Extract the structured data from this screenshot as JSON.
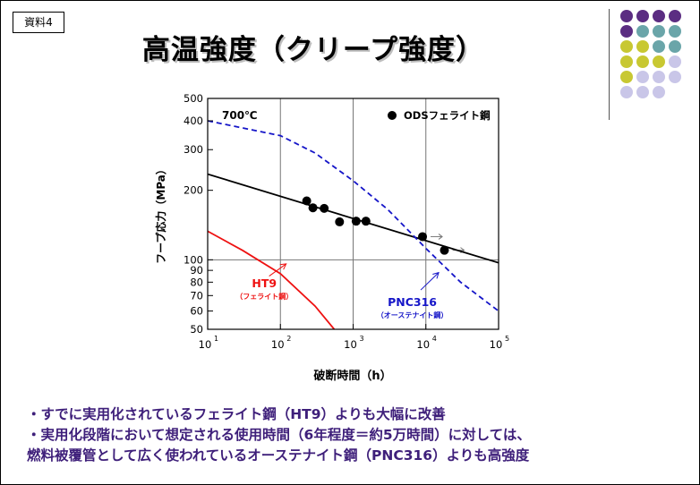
{
  "document": {
    "tag": "資料4",
    "title": "高温強度（クリープ強度）",
    "bullets": [
      "・すでに実用化されているフェライト鋼（HT9）よりも大幅に改善",
      "・実用化段階において想定される使用時間（6年程度＝約5万時間）に対しては、",
      "燃料被覆管として広く使われているオーステナイト鋼（PNC316）よりも高強度"
    ]
  },
  "decor": {
    "dot_colors": {
      "purple": "#5b2d82",
      "teal": "#6aa5a9",
      "yellow": "#c8c832",
      "lavender": "#c9c6e8"
    },
    "dot_grid": [
      [
        "purple",
        "purple",
        "purple",
        "purple"
      ],
      [
        "purple",
        "teal",
        "teal",
        "teal"
      ],
      [
        "yellow",
        "yellow",
        "teal",
        "teal"
      ],
      [
        "yellow",
        "yellow",
        "yellow",
        "lavender"
      ],
      [
        "yellow",
        "lavender",
        "lavender",
        "lavender"
      ],
      [
        "lavender",
        "lavender",
        "lavender",
        ""
      ]
    ]
  },
  "chart_data": {
    "type": "scatter",
    "xlabel": "破断時間（h）",
    "ylabel": "フープ応力（MPa）",
    "xscale": "log",
    "yscale": "log",
    "xlim": [
      10,
      100000
    ],
    "ylim": [
      50,
      500
    ],
    "xticks": [
      {
        "value": 10,
        "base": "10",
        "exp": "1"
      },
      {
        "value": 100,
        "base": "10",
        "exp": "2"
      },
      {
        "value": 1000,
        "base": "10",
        "exp": "3"
      },
      {
        "value": 10000,
        "base": "10",
        "exp": "4"
      },
      {
        "value": 100000,
        "base": "10",
        "exp": "5"
      }
    ],
    "yticks": [
      {
        "value": 50,
        "label": "50"
      },
      {
        "value": 60,
        "label": "60"
      },
      {
        "value": 70,
        "label": "70"
      },
      {
        "value": 80,
        "label": "80"
      },
      {
        "value": 90,
        "label": "90"
      },
      {
        "value": 100,
        "label": "100"
      },
      {
        "value": 200,
        "label": "200"
      },
      {
        "value": 300,
        "label": "300"
      },
      {
        "value": 400,
        "label": "400"
      },
      {
        "value": 500,
        "label": "500"
      }
    ],
    "grid": {
      "x": [
        100,
        1000,
        10000
      ],
      "y": [
        100
      ]
    },
    "temperature": "700℃",
    "legend": {
      "label": "ODSフェライト鋼",
      "position": "top-right"
    },
    "series": [
      {
        "name": "ODSフェライト鋼",
        "kind": "points",
        "color": "#000000",
        "points": [
          {
            "x": 230,
            "y": 180
          },
          {
            "x": 280,
            "y": 168
          },
          {
            "x": 400,
            "y": 167
          },
          {
            "x": 650,
            "y": 146
          },
          {
            "x": 1100,
            "y": 147
          },
          {
            "x": 1500,
            "y": 147
          },
          {
            "x": 9000,
            "y": 126
          },
          {
            "x": 18000,
            "y": 110
          }
        ],
        "runouts": [
          {
            "x": 9000,
            "y": 126
          },
          {
            "x": 18000,
            "y": 110
          }
        ]
      },
      {
        "name": "ODSフェライト鋼 fit",
        "kind": "line",
        "style": "solid",
        "color": "#000000",
        "points": [
          {
            "x": 10,
            "y": 235
          },
          {
            "x": 100000,
            "y": 97
          }
        ]
      },
      {
        "name": "PNC316",
        "kind": "line",
        "style": "dashed",
        "color": "#1515c8",
        "points": [
          {
            "x": 10,
            "y": 400
          },
          {
            "x": 100,
            "y": 345
          },
          {
            "x": 300,
            "y": 290
          },
          {
            "x": 1000,
            "y": 220
          },
          {
            "x": 3000,
            "y": 165
          },
          {
            "x": 10000,
            "y": 112
          },
          {
            "x": 30000,
            "y": 80
          },
          {
            "x": 100000,
            "y": 60
          }
        ]
      },
      {
        "name": "HT9",
        "kind": "line",
        "style": "solid",
        "color": "#ee1111",
        "points": [
          {
            "x": 10,
            "y": 133
          },
          {
            "x": 30,
            "y": 110
          },
          {
            "x": 100,
            "y": 87
          },
          {
            "x": 300,
            "y": 63
          },
          {
            "x": 550,
            "y": 50
          }
        ]
      }
    ],
    "annotations": [
      {
        "name": "ht9",
        "text": "HT9",
        "subtext": "（フェライト鋼）",
        "color": "#ee1111",
        "x": 60,
        "y": 76,
        "arrow_from": {
          "x": 70,
          "y": 85
        },
        "arrow_to": {
          "x": 120,
          "y": 96
        }
      },
      {
        "name": "pnc316",
        "text": "PNC316",
        "subtext": "（オーステナイト鋼）",
        "color": "#1515c8",
        "x": 6500,
        "y": 63,
        "arrow_from": {
          "x": 8500,
          "y": 74
        },
        "arrow_to": {
          "x": 15000,
          "y": 88
        }
      }
    ]
  }
}
